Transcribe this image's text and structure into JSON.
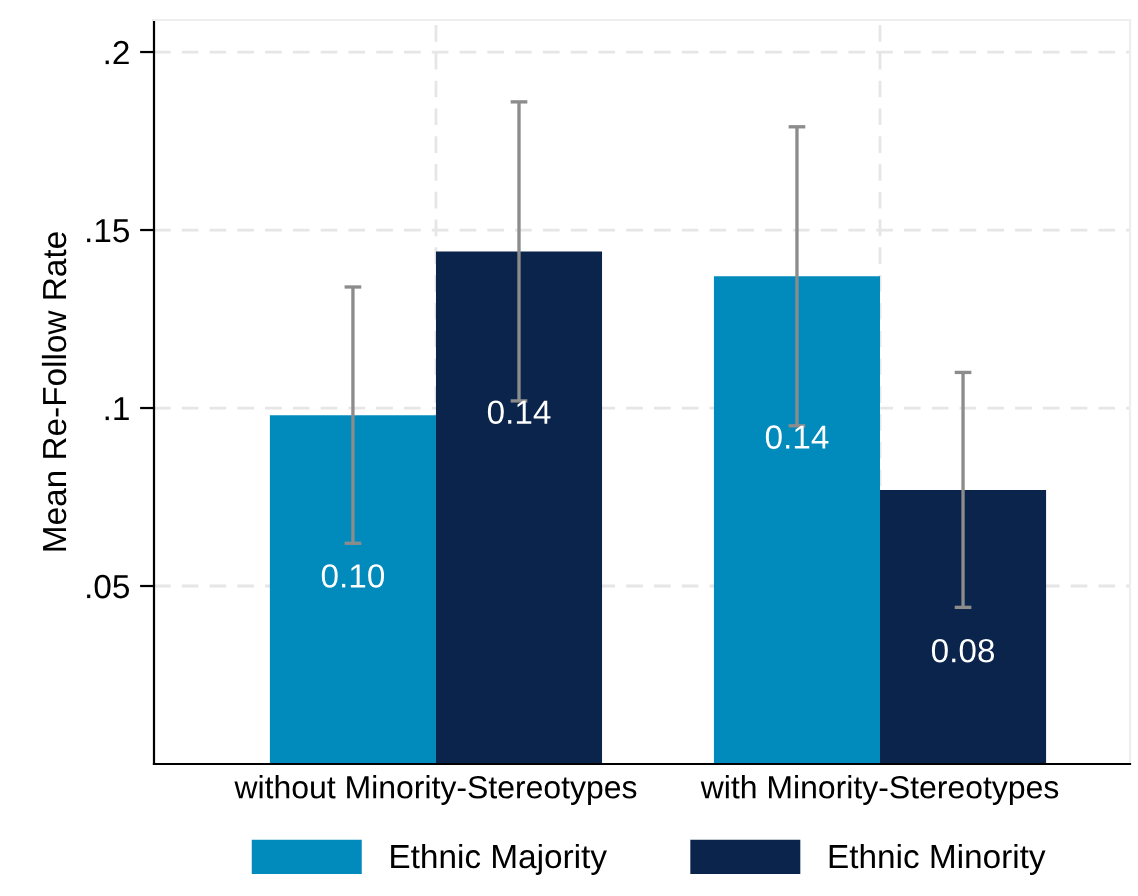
{
  "chart_data": {
    "type": "bar",
    "ylabel": "Mean Re-Follow Rate",
    "categories": [
      "without Minority-Stereotypes",
      "with Minority-Stereotypes"
    ],
    "series": [
      {
        "name": "Ethnic Majority",
        "color": "#008bbc",
        "values": [
          0.098,
          0.137
        ],
        "errors": [
          [
            0.062,
            0.134
          ],
          [
            0.095,
            0.179
          ]
        ],
        "value_labels": [
          "0.10",
          "0.14"
        ]
      },
      {
        "name": "Ethnic Minority",
        "color": "#0b244c",
        "values": [
          0.144,
          0.077
        ],
        "errors": [
          [
            0.102,
            0.186
          ],
          [
            0.044,
            0.11
          ]
        ],
        "value_labels": [
          "0.14",
          "0.08"
        ]
      }
    ],
    "ylim": [
      0,
      0.209
    ],
    "yticks": [
      {
        "value": 0.05,
        "label": ".05"
      },
      {
        "value": 0.1,
        "label": ".1"
      },
      {
        "value": 0.15,
        "label": ".15"
      },
      {
        "value": 0.2,
        "label": ".2"
      }
    ],
    "grid": true,
    "legend": "bottom"
  }
}
